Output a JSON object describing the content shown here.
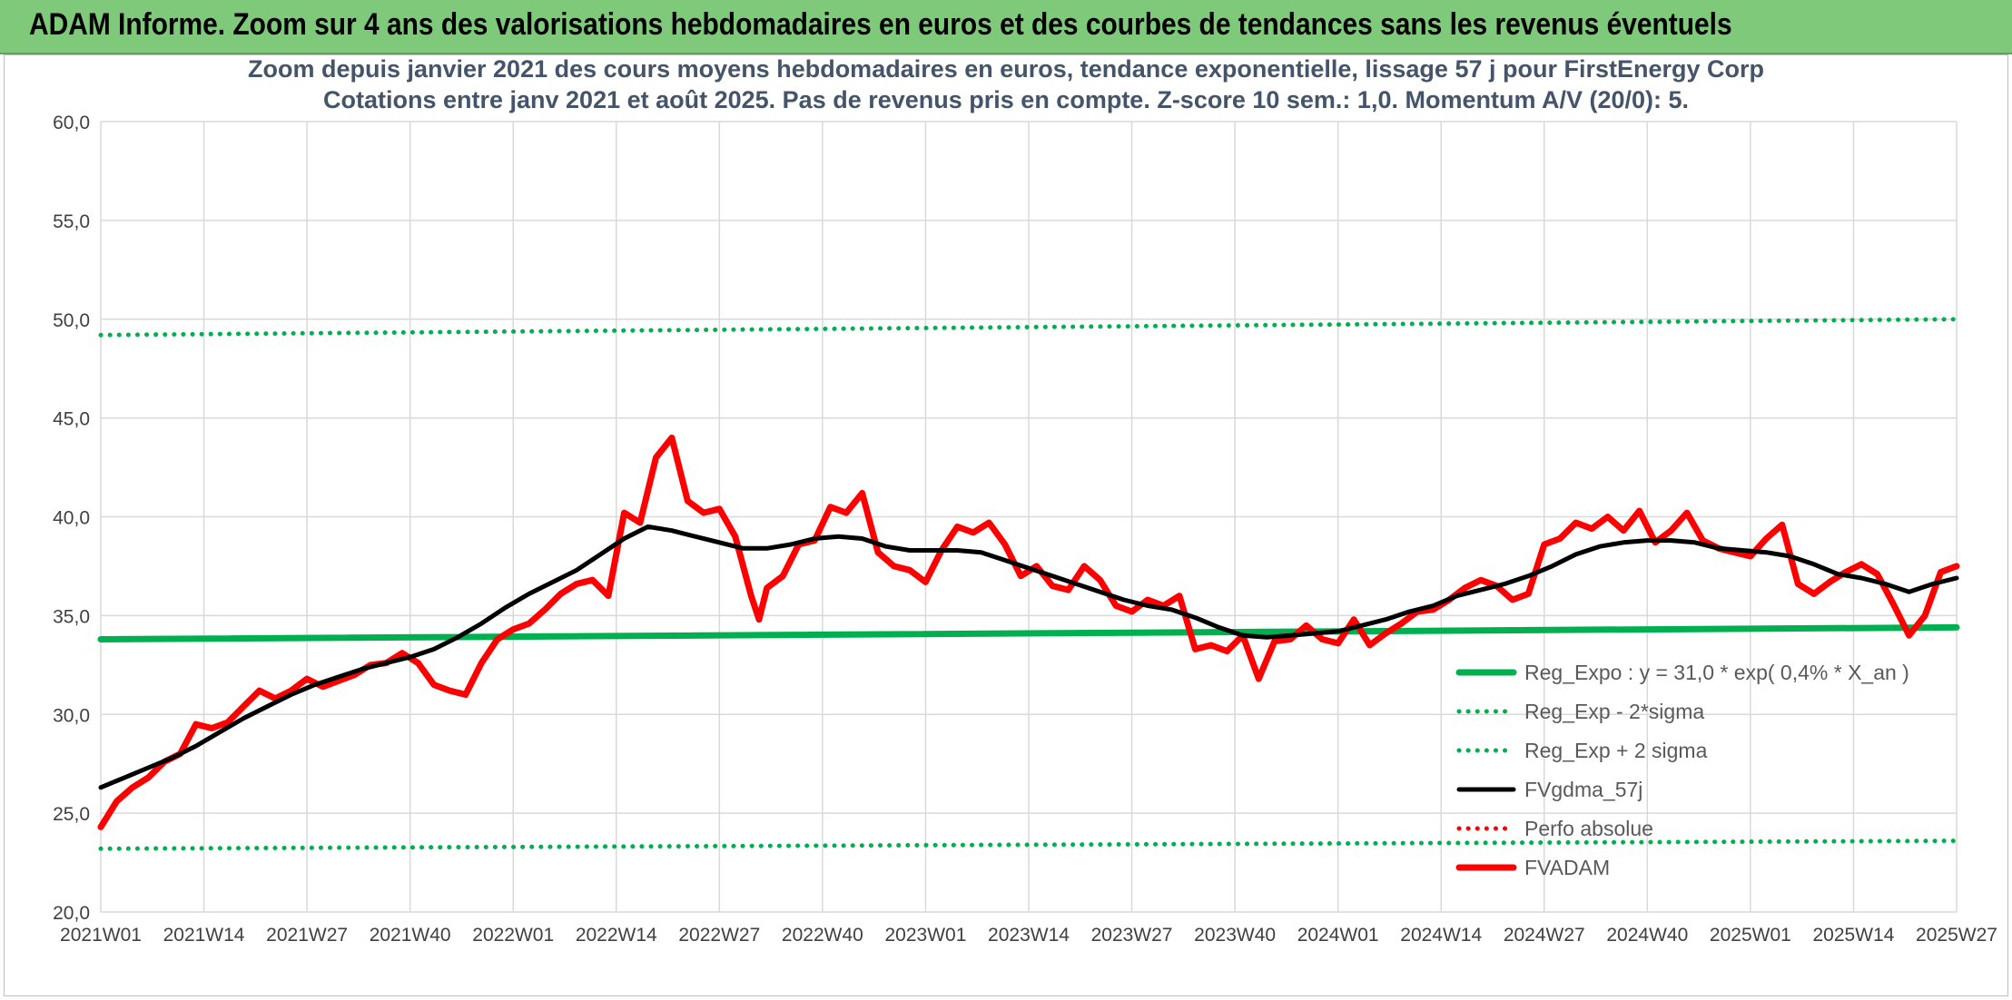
{
  "header": {
    "banner_title": "ADAM Informe. Zoom sur 4 ans des valorisations hebdomadaires en euros et des courbes de tendances sans les revenus éventuels"
  },
  "colors": {
    "banner_bg": "#7fc97a",
    "trend": "#00b050",
    "band": "#00b050",
    "fvgdma": "#000000",
    "perfo": "#ff0000",
    "fvadam": "#ff0000",
    "grid": "#d9d9d9"
  },
  "chart_data": {
    "type": "line",
    "title": "Zoom depuis janvier 2021 des cours moyens hebdomadaires en euros, tendance exponentielle, lissage 57 j pour FirstEnergy Corp",
    "subtitle": "Cotations entre janv 2021 et août 2025. Pas de revenus pris en compte. Z-score 10 sem.: 1,0. Momentum A/V (20/0): 5.",
    "xlabel": "",
    "ylabel": "",
    "ylim": [
      20,
      60
    ],
    "yticks": [
      "20,0",
      "25,0",
      "30,0",
      "35,0",
      "40,0",
      "45,0",
      "50,0",
      "55,0",
      "60,0"
    ],
    "xticks": [
      "2021W01",
      "2021W14",
      "2021W27",
      "2021W40",
      "2022W01",
      "2022W14",
      "2022W27",
      "2022W40",
      "2023W01",
      "2023W14",
      "2023W27",
      "2023W40",
      "2024W01",
      "2024W14",
      "2024W27",
      "2024W40",
      "2025W01",
      "2025W14",
      "2025W27"
    ],
    "grid": true,
    "legend_position": "bottom-right",
    "series": [
      {
        "name": "Reg_Expo : y = 31,0 * exp( 0,4% *  X_an )",
        "style": "solid-thick",
        "color": "#00b050",
        "points": [
          [
            0,
            33.8
          ],
          [
            234,
            34.4
          ]
        ]
      },
      {
        "name": "Reg_Exp - 2*sigma",
        "style": "dotted",
        "color": "#00b050",
        "points": [
          [
            0,
            23.2
          ],
          [
            234,
            23.6
          ]
        ]
      },
      {
        "name": "Reg_Exp + 2 sigma",
        "style": "dotted",
        "color": "#00b050",
        "points": [
          [
            0,
            49.2
          ],
          [
            234,
            50.0
          ]
        ]
      },
      {
        "name": "FVgdma_57j",
        "style": "solid",
        "color": "#000000",
        "points": [
          [
            0,
            26.3
          ],
          [
            3,
            26.8
          ],
          [
            6,
            27.3
          ],
          [
            9,
            27.8
          ],
          [
            12,
            28.4
          ],
          [
            15,
            29.1
          ],
          [
            18,
            29.8
          ],
          [
            21,
            30.4
          ],
          [
            24,
            31.0
          ],
          [
            27,
            31.5
          ],
          [
            30,
            31.9
          ],
          [
            33,
            32.3
          ],
          [
            36,
            32.6
          ],
          [
            39,
            32.9
          ],
          [
            42,
            33.3
          ],
          [
            45,
            33.9
          ],
          [
            48,
            34.6
          ],
          [
            51,
            35.4
          ],
          [
            54,
            36.1
          ],
          [
            57,
            36.7
          ],
          [
            60,
            37.3
          ],
          [
            63,
            38.1
          ],
          [
            66,
            38.9
          ],
          [
            69,
            39.5
          ],
          [
            72,
            39.3
          ],
          [
            75,
            39.0
          ],
          [
            78,
            38.7
          ],
          [
            81,
            38.4
          ],
          [
            84,
            38.4
          ],
          [
            87,
            38.6
          ],
          [
            90,
            38.9
          ],
          [
            93,
            39.0
          ],
          [
            96,
            38.9
          ],
          [
            99,
            38.5
          ],
          [
            102,
            38.3
          ],
          [
            105,
            38.3
          ],
          [
            108,
            38.3
          ],
          [
            111,
            38.2
          ],
          [
            114,
            37.8
          ],
          [
            117,
            37.4
          ],
          [
            120,
            37.0
          ],
          [
            123,
            36.6
          ],
          [
            126,
            36.2
          ],
          [
            129,
            35.8
          ],
          [
            132,
            35.5
          ],
          [
            135,
            35.3
          ],
          [
            138,
            34.9
          ],
          [
            141,
            34.4
          ],
          [
            144,
            34.0
          ],
          [
            147,
            33.9
          ],
          [
            150,
            34.0
          ],
          [
            153,
            34.1
          ],
          [
            156,
            34.2
          ],
          [
            159,
            34.5
          ],
          [
            162,
            34.8
          ],
          [
            165,
            35.2
          ],
          [
            168,
            35.5
          ],
          [
            171,
            36.0
          ],
          [
            174,
            36.3
          ],
          [
            177,
            36.6
          ],
          [
            180,
            37.0
          ],
          [
            183,
            37.5
          ],
          [
            186,
            38.1
          ],
          [
            189,
            38.5
          ],
          [
            192,
            38.7
          ],
          [
            195,
            38.8
          ],
          [
            198,
            38.8
          ],
          [
            201,
            38.7
          ],
          [
            204,
            38.4
          ],
          [
            207,
            38.3
          ],
          [
            210,
            38.2
          ],
          [
            213,
            38.0
          ],
          [
            216,
            37.6
          ],
          [
            219,
            37.1
          ],
          [
            222,
            36.9
          ],
          [
            225,
            36.6
          ],
          [
            228,
            36.2
          ],
          [
            231,
            36.6
          ],
          [
            234,
            36.9
          ]
        ]
      },
      {
        "name": "Perfo  absolue",
        "style": "dotted",
        "color": "#ff0000",
        "points": []
      },
      {
        "name": "FVADAM",
        "style": "solid-thick",
        "color": "#ff0000",
        "points": [
          [
            0,
            24.3
          ],
          [
            2,
            25.6
          ],
          [
            4,
            26.3
          ],
          [
            6,
            26.8
          ],
          [
            8,
            27.6
          ],
          [
            10,
            28.0
          ],
          [
            12,
            29.5
          ],
          [
            14,
            29.3
          ],
          [
            16,
            29.6
          ],
          [
            18,
            30.4
          ],
          [
            20,
            31.2
          ],
          [
            22,
            30.8
          ],
          [
            24,
            31.2
          ],
          [
            26,
            31.8
          ],
          [
            28,
            31.4
          ],
          [
            30,
            31.7
          ],
          [
            32,
            32.0
          ],
          [
            34,
            32.5
          ],
          [
            36,
            32.6
          ],
          [
            38,
            33.1
          ],
          [
            40,
            32.6
          ],
          [
            42,
            31.5
          ],
          [
            44,
            31.2
          ],
          [
            46,
            31.0
          ],
          [
            48,
            32.6
          ],
          [
            50,
            33.8
          ],
          [
            52,
            34.3
          ],
          [
            54,
            34.6
          ],
          [
            56,
            35.3
          ],
          [
            58,
            36.1
          ],
          [
            60,
            36.6
          ],
          [
            62,
            36.8
          ],
          [
            64,
            36.0
          ],
          [
            66,
            40.2
          ],
          [
            68,
            39.7
          ],
          [
            70,
            43.0
          ],
          [
            72,
            44.0
          ],
          [
            74,
            40.8
          ],
          [
            76,
            40.2
          ],
          [
            78,
            40.4
          ],
          [
            80,
            39.0
          ],
          [
            82,
            36.0
          ],
          [
            83,
            34.8
          ],
          [
            84,
            36.4
          ],
          [
            86,
            37.0
          ],
          [
            88,
            38.6
          ],
          [
            90,
            38.8
          ],
          [
            92,
            40.5
          ],
          [
            94,
            40.2
          ],
          [
            96,
            41.2
          ],
          [
            98,
            38.2
          ],
          [
            100,
            37.5
          ],
          [
            102,
            37.3
          ],
          [
            104,
            36.7
          ],
          [
            106,
            38.3
          ],
          [
            108,
            39.5
          ],
          [
            110,
            39.2
          ],
          [
            112,
            39.7
          ],
          [
            114,
            38.6
          ],
          [
            116,
            37.0
          ],
          [
            118,
            37.5
          ],
          [
            120,
            36.5
          ],
          [
            122,
            36.3
          ],
          [
            124,
            37.5
          ],
          [
            126,
            36.8
          ],
          [
            128,
            35.5
          ],
          [
            130,
            35.2
          ],
          [
            132,
            35.8
          ],
          [
            134,
            35.5
          ],
          [
            136,
            36.0
          ],
          [
            138,
            33.3
          ],
          [
            140,
            33.5
          ],
          [
            142,
            33.2
          ],
          [
            144,
            34.0
          ],
          [
            146,
            31.8
          ],
          [
            148,
            33.7
          ],
          [
            150,
            33.8
          ],
          [
            152,
            34.5
          ],
          [
            154,
            33.8
          ],
          [
            156,
            33.6
          ],
          [
            158,
            34.8
          ],
          [
            160,
            33.5
          ],
          [
            162,
            34.1
          ],
          [
            164,
            34.6
          ],
          [
            166,
            35.2
          ],
          [
            168,
            35.3
          ],
          [
            170,
            35.8
          ],
          [
            172,
            36.4
          ],
          [
            174,
            36.8
          ],
          [
            176,
            36.5
          ],
          [
            178,
            35.8
          ],
          [
            180,
            36.1
          ],
          [
            182,
            38.6
          ],
          [
            184,
            38.9
          ],
          [
            186,
            39.7
          ],
          [
            188,
            39.4
          ],
          [
            190,
            40.0
          ],
          [
            192,
            39.3
          ],
          [
            194,
            40.3
          ],
          [
            196,
            38.7
          ],
          [
            198,
            39.3
          ],
          [
            200,
            40.2
          ],
          [
            202,
            38.8
          ],
          [
            204,
            38.4
          ],
          [
            206,
            38.2
          ],
          [
            208,
            38.0
          ],
          [
            210,
            38.9
          ],
          [
            212,
            39.6
          ],
          [
            214,
            36.6
          ],
          [
            216,
            36.1
          ],
          [
            218,
            36.7
          ],
          [
            220,
            37.2
          ],
          [
            222,
            37.6
          ],
          [
            224,
            37.1
          ],
          [
            226,
            35.6
          ],
          [
            228,
            34.0
          ],
          [
            230,
            35.0
          ],
          [
            232,
            37.2
          ],
          [
            234,
            37.5
          ]
        ]
      }
    ]
  }
}
